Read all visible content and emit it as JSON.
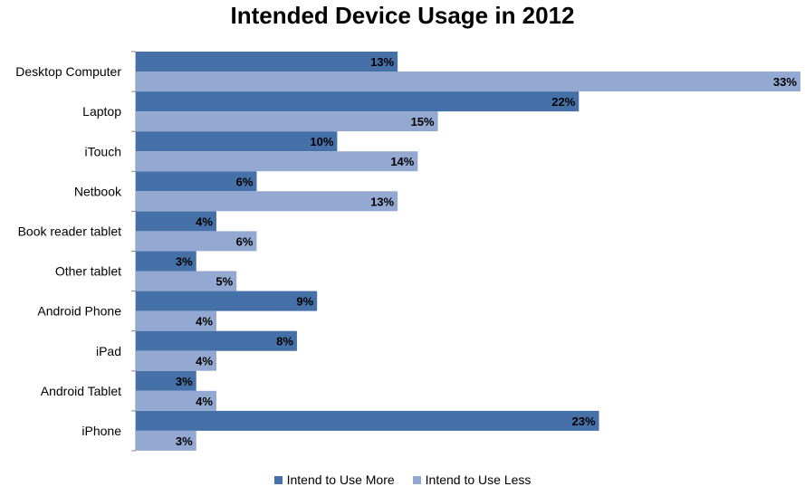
{
  "chart_data": {
    "type": "bar",
    "orientation": "horizontal",
    "title": "Intended Device Usage in 2012",
    "categories": [
      "Desktop Computer",
      "Laptop",
      "iTouch",
      "Netbook",
      "Book reader tablet",
      "Other tablet",
      "Android Phone",
      "iPad",
      "Android Tablet",
      "iPhone"
    ],
    "series": [
      {
        "name": "Intend to Use More",
        "values": [
          13,
          22,
          10,
          6,
          4,
          3,
          9,
          8,
          3,
          23
        ],
        "color": "#4570A8"
      },
      {
        "name": "Intend to Use Less",
        "values": [
          33,
          15,
          14,
          13,
          6,
          5,
          4,
          4,
          4,
          3
        ],
        "color": "#93A9D1"
      }
    ],
    "value_suffix": "%",
    "xlim": [
      0,
      33
    ],
    "legend_position": "bottom",
    "grid": false
  }
}
